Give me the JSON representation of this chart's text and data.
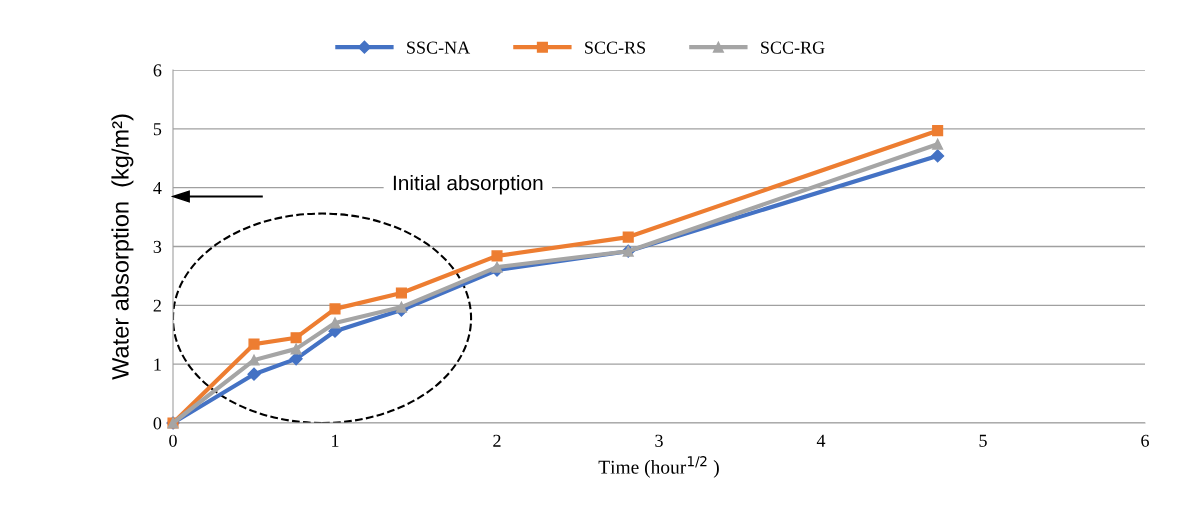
{
  "chart_data": {
    "type": "line",
    "xlabel": "Time (hour$^{1/2}$ )",
    "ylabel": "Water absorption  (kg/m²)",
    "x": [
      0,
      0.5,
      0.76,
      1,
      1.41,
      2,
      2.81,
      4.72
    ],
    "series": [
      {
        "name": "SSC-NA",
        "color": "#4472c4",
        "marker": "diamond",
        "values": [
          0,
          0.83,
          1.09,
          1.56,
          1.92,
          2.6,
          2.92,
          4.54
        ]
      },
      {
        "name": "SCC-RS",
        "color": "#ed7d31",
        "marker": "square",
        "values": [
          0,
          1.34,
          1.45,
          1.94,
          2.21,
          2.84,
          3.16,
          4.97
        ]
      },
      {
        "name": "SCC-RG",
        "color": "#a5a5a5",
        "marker": "triangle",
        "values": [
          0,
          1.07,
          1.26,
          1.7,
          1.97,
          2.65,
          2.92,
          4.74
        ]
      }
    ],
    "xlim": [
      0,
      6
    ],
    "ylim": [
      0,
      6
    ],
    "xticks": [
      0,
      1,
      2,
      3,
      4,
      5,
      6
    ],
    "yticks": [
      0,
      1,
      2,
      3,
      4,
      5,
      6
    ],
    "grid": "y",
    "legend": "top",
    "annotations": [
      "Initial absorption"
    ]
  }
}
